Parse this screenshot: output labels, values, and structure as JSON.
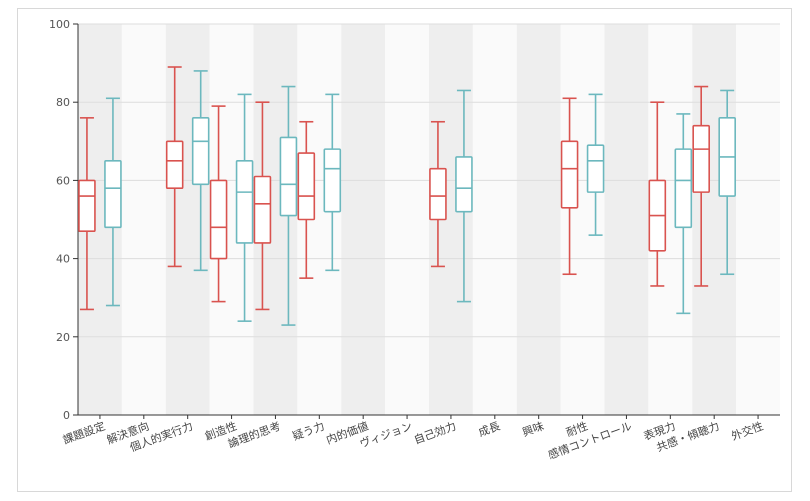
{
  "chart_data": {
    "type": "boxplot",
    "title": "",
    "xlabel": "",
    "ylabel": "",
    "ylim": [
      0,
      100
    ],
    "yticks": [
      0,
      20,
      40,
      60,
      80,
      100
    ],
    "grid": true,
    "legend": "none",
    "categories": [
      "課題設定",
      "解決意向",
      "個人的実行力",
      "創造性",
      "論理的思考",
      "疑う力",
      "内的価値",
      "ヴィジョン",
      "自己効力",
      "成長",
      "興味",
      "耐性",
      "感情コントロール",
      "表現力",
      "共感・傾聴力",
      "外交性"
    ],
    "series": [
      {
        "color": "#d9534f",
        "boxes": [
          {
            "category": "課題設定",
            "min": 27,
            "q1": 47,
            "median": 56,
            "q3": 60,
            "max": 76
          },
          {
            "category": "個人的実行力",
            "min": 38,
            "q1": 58,
            "median": 65,
            "q3": 70,
            "max": 89
          },
          {
            "category": "創造性",
            "min": 29,
            "q1": 40,
            "median": 48,
            "q3": 60,
            "max": 79
          },
          {
            "category": "論理的思考",
            "min": 27,
            "q1": 44,
            "median": 54,
            "q3": 61,
            "max": 80
          },
          {
            "category": "疑う力",
            "min": 35,
            "q1": 50,
            "median": 56,
            "q3": 67,
            "max": 75
          },
          {
            "category": "自己効力",
            "min": 38,
            "q1": 50,
            "median": 56,
            "q3": 63,
            "max": 75
          },
          {
            "category": "耐性",
            "min": 36,
            "q1": 53,
            "median": 63,
            "q3": 70,
            "max": 81
          },
          {
            "category": "表現力",
            "min": 33,
            "q1": 42,
            "median": 51,
            "q3": 60,
            "max": 80
          },
          {
            "category": "共感・傾聴力",
            "min": 33,
            "q1": 57,
            "median": 68,
            "q3": 74,
            "max": 84
          }
        ]
      },
      {
        "color": "#6cb8be",
        "boxes": [
          {
            "category": "課題設定",
            "min": 28,
            "q1": 48,
            "median": 58,
            "q3": 65,
            "max": 81
          },
          {
            "category": "個人的実行力",
            "min": 37,
            "q1": 59,
            "median": 70,
            "q3": 76,
            "max": 88
          },
          {
            "category": "創造性",
            "min": 24,
            "q1": 44,
            "median": 57,
            "q3": 65,
            "max": 82
          },
          {
            "category": "論理的思考",
            "min": 23,
            "q1": 51,
            "median": 59,
            "q3": 71,
            "max": 84
          },
          {
            "category": "疑う力",
            "min": 37,
            "q1": 52,
            "median": 63,
            "q3": 68,
            "max": 82
          },
          {
            "category": "自己効力",
            "min": 29,
            "q1": 52,
            "median": 58,
            "q3": 66,
            "max": 83
          },
          {
            "category": "耐性",
            "min": 46,
            "q1": 57,
            "median": 65,
            "q3": 69,
            "max": 82
          },
          {
            "category": "表現力",
            "min": 26,
            "q1": 48,
            "median": 60,
            "q3": 68,
            "max": 77
          },
          {
            "category": "共感・傾聴力",
            "min": 36,
            "q1": 56,
            "median": 66,
            "q3": 76,
            "max": 83
          }
        ]
      }
    ]
  }
}
